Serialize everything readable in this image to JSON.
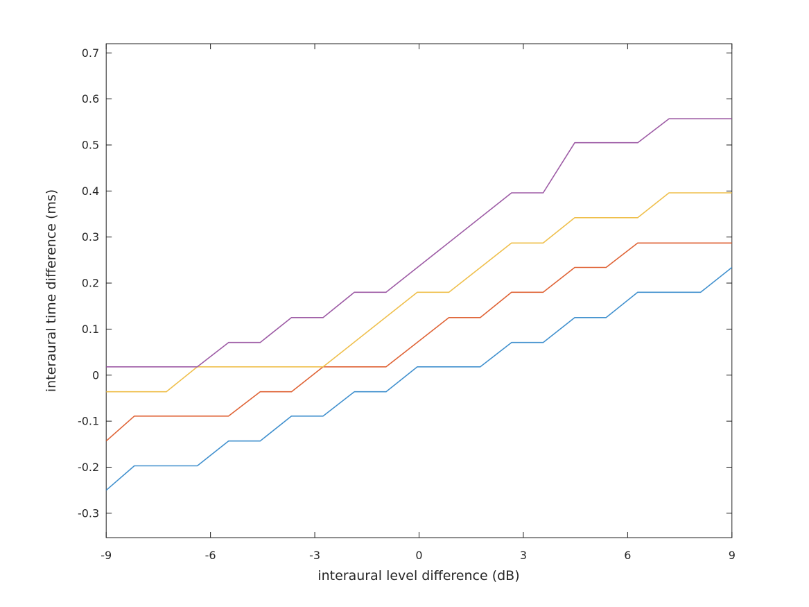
{
  "figure": {
    "background": "#ffffff",
    "axis_color": "#1f1f1f",
    "text_color": "#262626"
  },
  "chart_data": {
    "type": "line",
    "title": "",
    "xlabel": "interaural level difference (dB)",
    "ylabel": "interaural time difference (ms)",
    "xlim": [
      -9,
      9
    ],
    "ylim": [
      -0.353,
      0.72
    ],
    "x_ticks": [
      -9,
      -6,
      -3,
      0,
      3,
      6,
      9
    ],
    "x_tick_labels": [
      "-9",
      "-6",
      "-3",
      "0",
      "3",
      "6",
      "9"
    ],
    "y_ticks": [
      -0.3,
      -0.2,
      -0.1,
      0,
      0.1,
      0.2,
      0.3,
      0.4,
      0.5,
      0.6,
      0.7
    ],
    "y_tick_labels": [
      "-0.3",
      "-0.2",
      "-0.1",
      "0",
      "0.1",
      "0.2",
      "0.3",
      "0.4",
      "0.5",
      "0.6",
      "0.7"
    ],
    "grid": false,
    "legend": false,
    "box": true,
    "tick_direction": "in",
    "quantization_step_ms": 0.0535,
    "series": [
      {
        "name": "curve-1-blue",
        "color": "#4090CE",
        "points": [
          [
            -9,
            -0.25
          ],
          [
            -8.19,
            -0.197
          ],
          [
            -6.38,
            -0.197
          ],
          [
            -5.48,
            -0.143
          ],
          [
            -4.57,
            -0.143
          ],
          [
            -3.67,
            -0.089
          ],
          [
            -2.76,
            -0.089
          ],
          [
            -1.86,
            -0.036
          ],
          [
            -0.95,
            -0.036
          ],
          [
            -0.05,
            0.018
          ],
          [
            1.76,
            0.018
          ],
          [
            2.66,
            0.071
          ],
          [
            3.57,
            0.071
          ],
          [
            4.48,
            0.125
          ],
          [
            5.38,
            0.125
          ],
          [
            6.29,
            0.18
          ],
          [
            8.1,
            0.18
          ],
          [
            9,
            0.234
          ]
        ]
      },
      {
        "name": "curve-2-orange",
        "color": "#DF6234",
        "points": [
          [
            -9,
            -0.143
          ],
          [
            -8.19,
            -0.089
          ],
          [
            -5.48,
            -0.089
          ],
          [
            -4.57,
            -0.036
          ],
          [
            -3.67,
            -0.036
          ],
          [
            -2.76,
            0.018
          ],
          [
            -0.95,
            0.018
          ],
          [
            0.86,
            0.125
          ],
          [
            1.76,
            0.125
          ],
          [
            2.66,
            0.18
          ],
          [
            3.57,
            0.18
          ],
          [
            4.48,
            0.234
          ],
          [
            5.38,
            0.234
          ],
          [
            6.29,
            0.287
          ],
          [
            9,
            0.287
          ]
        ]
      },
      {
        "name": "curve-3-yellow",
        "color": "#EFBF4B",
        "points": [
          [
            -9,
            -0.036
          ],
          [
            -7.27,
            -0.036
          ],
          [
            -6.38,
            0.018
          ],
          [
            -2.76,
            0.018
          ],
          [
            -0.05,
            0.18
          ],
          [
            0.86,
            0.18
          ],
          [
            2.66,
            0.287
          ],
          [
            3.57,
            0.287
          ],
          [
            4.48,
            0.342
          ],
          [
            6.29,
            0.342
          ],
          [
            7.19,
            0.396
          ],
          [
            9,
            0.396
          ]
        ]
      },
      {
        "name": "curve-4-purple",
        "color": "#9D5BA5",
        "points": [
          [
            -9,
            0.018
          ],
          [
            -6.38,
            0.018
          ],
          [
            -5.48,
            0.071
          ],
          [
            -4.57,
            0.071
          ],
          [
            -3.67,
            0.125
          ],
          [
            -2.76,
            0.125
          ],
          [
            -1.86,
            0.18
          ],
          [
            -0.95,
            0.18
          ],
          [
            2.66,
            0.396
          ],
          [
            3.57,
            0.396
          ],
          [
            4.48,
            0.505
          ],
          [
            6.29,
            0.505
          ],
          [
            7.19,
            0.557
          ],
          [
            9,
            0.557
          ]
        ]
      }
    ]
  }
}
